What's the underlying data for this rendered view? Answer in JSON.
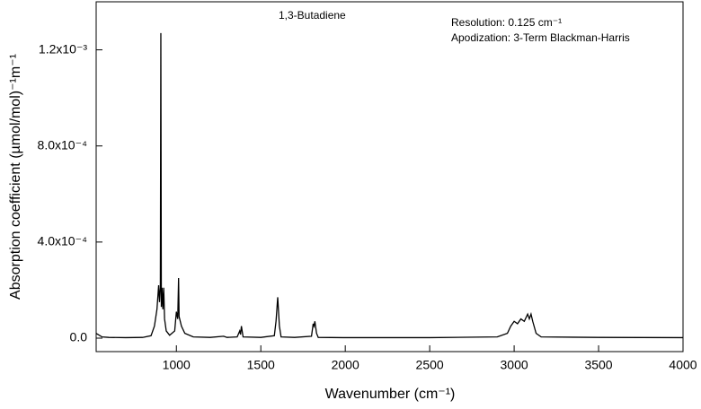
{
  "chart_data": {
    "type": "line",
    "annotations": [
      "1,3-Butadiene",
      "Resolution:  0.125 cm⁻¹",
      "Apodization: 3-Term Blackman-Harris"
    ],
    "x_label": "Wavenumber (cm⁻¹)",
    "y_label": "Absorption coefficient (µmol/mol)⁻¹m⁻¹",
    "xlim": [
      525,
      4000
    ],
    "ylim": [
      -5.6e-05,
      0.0014
    ],
    "xticks": [
      1000,
      1500,
      2000,
      2500,
      3000,
      3500,
      4000
    ],
    "yticks": [
      {
        "value": 0,
        "label": "0.0"
      },
      {
        "value": 0.0004,
        "label": "4.0x10⁻⁴"
      },
      {
        "value": 0.0008,
        "label": "8.0x10⁻⁴"
      },
      {
        "value": 0.0012,
        "label": "1.2x10⁻³"
      }
    ],
    "grid": false,
    "series": [
      {
        "color": "#000000",
        "x": [
          525,
          560,
          600,
          700,
          800,
          850,
          870,
          885,
          895,
          900,
          905,
          908,
          911,
          915,
          920,
          925,
          930,
          940,
          960,
          990,
          1000,
          1008,
          1013,
          1016,
          1030,
          1050,
          1100,
          1200,
          1280,
          1300,
          1360,
          1375,
          1380,
          1385,
          1395,
          1500,
          1580,
          1590,
          1595,
          1600,
          1605,
          1610,
          1620,
          1700,
          1800,
          1810,
          1815,
          1820,
          1830,
          1840,
          2000,
          2500,
          2900,
          2960,
          2980,
          3000,
          3020,
          3040,
          3060,
          3080,
          3090,
          3100,
          3110,
          3130,
          3160,
          3500,
          4000
        ],
        "values": [
          2e-05,
          5e-06,
          3e-06,
          2e-06,
          3e-06,
          1e-05,
          5e-05,
          0.00012,
          0.00022,
          0.00015,
          0.00021,
          0.00127,
          0.00013,
          0.00021,
          0.00012,
          0.00021,
          8e-05,
          3e-05,
          1.2e-05,
          3e-05,
          0.00011,
          8e-05,
          0.00025,
          9e-05,
          5e-05,
          2e-05,
          5e-06,
          3e-06,
          8e-06,
          3e-06,
          5e-06,
          3e-05,
          1.5e-05,
          5e-05,
          5e-06,
          3e-06,
          1e-05,
          7e-05,
          0.00012,
          0.00017,
          0.00011,
          5e-05,
          5e-06,
          3e-06,
          8e-06,
          6e-05,
          5e-05,
          7e-05,
          2e-05,
          3e-06,
          2e-06,
          2e-06,
          5e-06,
          2e-05,
          5e-05,
          7e-05,
          6e-05,
          8e-05,
          7e-05,
          0.0001,
          8e-05,
          0.0001,
          7e-05,
          2e-05,
          5e-06,
          3e-06,
          2e-06
        ]
      }
    ]
  }
}
